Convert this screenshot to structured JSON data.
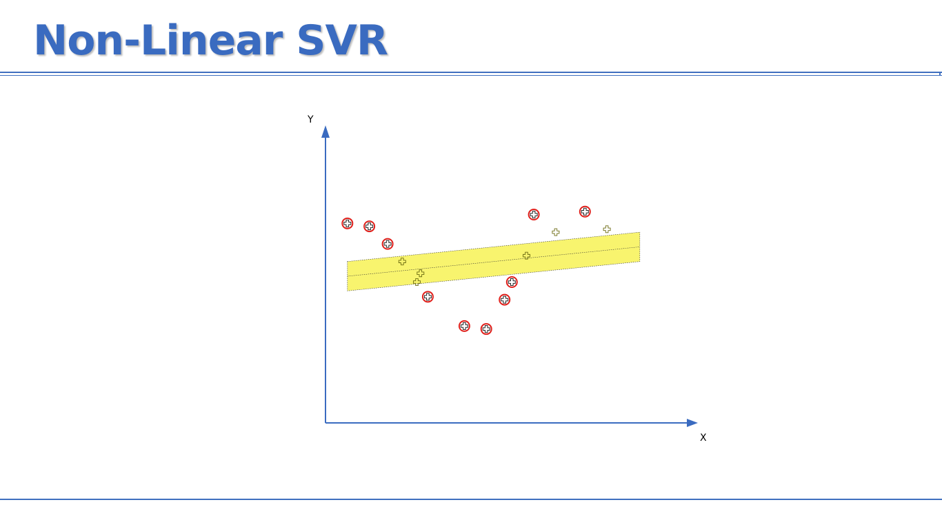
{
  "slide": {
    "title": "Non-Linear SVR"
  },
  "colors": {
    "title": "#3a6bc0",
    "axis": "#3a6bc0",
    "rule": "#3f6fbf",
    "tube_fill": "#f7f25a",
    "outlier_ring": "#e0201b"
  },
  "chart_data": {
    "type": "scatter",
    "title": "",
    "xlabel": "X",
    "ylabel": "Y",
    "xlim": [
      0,
      100
    ],
    "ylim": [
      0,
      100
    ],
    "grid": false,
    "regression_line": {
      "x": [
        6,
        86
      ],
      "y": [
        50,
        60
      ]
    },
    "epsilon": 5,
    "points_inside_tube": [
      {
        "x": 21,
        "y": 55
      },
      {
        "x": 26,
        "y": 51
      },
      {
        "x": 25,
        "y": 48
      },
      {
        "x": 55,
        "y": 57
      },
      {
        "x": 63,
        "y": 65
      },
      {
        "x": 77,
        "y": 66
      }
    ],
    "points_outside_tube": [
      {
        "x": 6,
        "y": 68
      },
      {
        "x": 12,
        "y": 67
      },
      {
        "x": 17,
        "y": 61
      },
      {
        "x": 28,
        "y": 43
      },
      {
        "x": 38,
        "y": 33
      },
      {
        "x": 44,
        "y": 32
      },
      {
        "x": 49,
        "y": 42
      },
      {
        "x": 51,
        "y": 48
      },
      {
        "x": 57,
        "y": 71
      },
      {
        "x": 71,
        "y": 72
      }
    ]
  }
}
